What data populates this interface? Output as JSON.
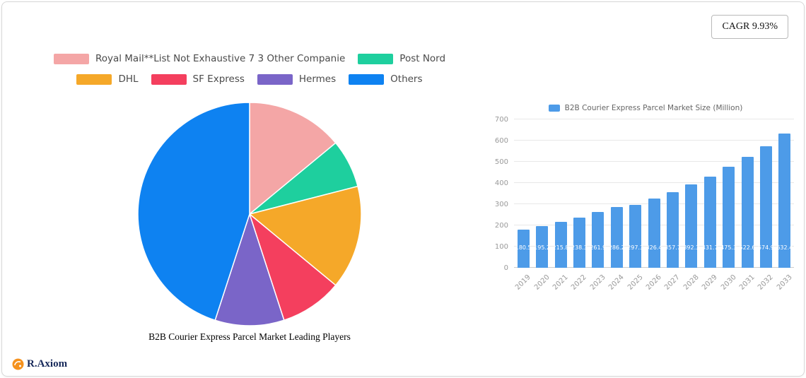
{
  "card": {
    "cagr_label": "CAGR 9.93%"
  },
  "legend": {
    "items": [
      {
        "label": "Royal Mail**List Not Exhaustive 7 3 Other Companie",
        "color": "#F4A6A6"
      },
      {
        "label": "Post Nord",
        "color": "#1ECF9E"
      },
      {
        "label": "DHL",
        "color": "#F5A829"
      },
      {
        "label": "SF Express",
        "color": "#F43F5E"
      },
      {
        "label": "Hermes",
        "color": "#7A65C8"
      },
      {
        "label": "Others",
        "color": "#0E82F1"
      }
    ]
  },
  "chart_data": [
    {
      "type": "pie",
      "title": "B2B Courier Express Parcel Market Leading Players",
      "labels": [
        "Royal Mail**List Not Exhaustive 7 3 Other Companie",
        "Post Nord",
        "DHL",
        "SF Express",
        "Hermes",
        "Others"
      ],
      "values": [
        14,
        7,
        15,
        9,
        10,
        45
      ],
      "colors": [
        "#F4A6A6",
        "#1ECF9E",
        "#F5A829",
        "#F43F5E",
        "#7A65C8",
        "#0E82F1"
      ],
      "start_angle_deg_from_top": 0,
      "direction": "clockwise"
    },
    {
      "type": "bar",
      "legend": "B2B Courier Express Parcel Market Size (Million)",
      "categories": [
        "2019",
        "2020",
        "2021",
        "2022",
        "2023",
        "2024",
        "2025",
        "2026",
        "2027",
        "2028",
        "2029",
        "2030",
        "2031",
        "2032",
        "2033"
      ],
      "values": [
        180.5,
        195.2,
        215.8,
        238.3,
        261.9,
        286.2,
        297.3,
        326.4,
        357.7,
        392.3,
        431.7,
        475.3,
        522.6,
        574.9,
        632.4
      ],
      "bar_color": "#4D9BE8",
      "ylim": [
        0,
        700
      ],
      "yticks": [
        0,
        100,
        200,
        300,
        400,
        500,
        600,
        700
      ],
      "grid": true,
      "legend_position": "top"
    }
  ],
  "footer": {
    "logo_text": "R.Axiom"
  }
}
